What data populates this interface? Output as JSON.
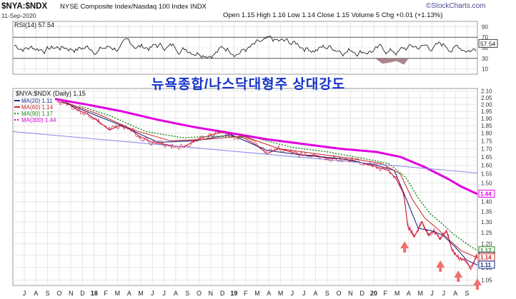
{
  "header": {
    "symbol": "$NYA:$NDX",
    "description": "NYSE Composite Index/Nasdaq 100 Index  INDX",
    "date": "11-Sep-2020",
    "quote": "Open 1.15  High 1.16  Low 1.14  Close 1.15  Volume 5  Chg +0.01 (+1.13%)",
    "brand": "©StockCharts.com",
    "chg_arrow": "▲"
  },
  "colors": {
    "ma20": "#1a2a8a",
    "ma60": "#cc2222",
    "ma90": "#238b23",
    "ma300": "#e000e0",
    "price": "#cc1a3a",
    "trend": "#8888ee",
    "arrow": "#f07070",
    "rsi": "#222222",
    "rsi_fill": "#a07a82",
    "annotation": "#1433c8"
  },
  "rsi": {
    "label": "RSI(14) 57.54",
    "last_value_tag": "57.54",
    "axis_labels": [
      "90",
      "70",
      "50",
      "30",
      "10"
    ],
    "overbought": 70,
    "oversold": 30
  },
  "annotation": {
    "text": "뉴욕종합/나스닥대형주 상대강도"
  },
  "legend": {
    "title": "$NYA:$NDX (Daily) 1.15",
    "items": [
      {
        "label": "MA(20) 1.11",
        "color": "#1a2a8a",
        "style": "solid"
      },
      {
        "label": "MA(60) 1.14",
        "color": "#cc2222",
        "style": "solid"
      },
      {
        "label": "MA(90) 1.17",
        "color": "#238b23",
        "style": "dotted"
      },
      {
        "label": "MA(300) 1.44",
        "color": "#e000e0",
        "style": "dotted"
      }
    ]
  },
  "price_tags": [
    "1.44",
    "1.17",
    "1.15",
    "1.14",
    "1.11"
  ],
  "chart_data": {
    "type": "line",
    "title": "$NYA:$NDX (Daily) 1.15",
    "xlabel": "",
    "ylabel": "",
    "log_scale": true,
    "grid": true,
    "legend_position": "top-left",
    "ylim": [
      1.03,
      2.12
    ],
    "y_ticks": [
      2.1,
      2.05,
      2.0,
      1.95,
      1.9,
      1.85,
      1.8,
      1.75,
      1.7,
      1.65,
      1.6,
      1.55,
      1.5,
      1.45,
      1.4,
      1.35,
      1.3,
      1.25,
      1.2,
      1.15,
      1.1,
      1.05
    ],
    "x_ticks": [
      "J",
      "A",
      "S",
      "O",
      "N",
      "D",
      "18",
      "F",
      "M",
      "A",
      "M",
      "J",
      "J",
      "A",
      "S",
      "O",
      "N",
      "D",
      "19",
      "F",
      "M",
      "A",
      "M",
      "J",
      "J",
      "A",
      "S",
      "O",
      "N",
      "D",
      "20",
      "F",
      "M",
      "A",
      "M",
      "J",
      "J",
      "A",
      "S"
    ],
    "xlim": [
      "2017-07-01",
      "2020-09-11"
    ],
    "series": [
      {
        "name": "$NYA:$NDX",
        "x": [
          "2017-10-20",
          "2017-11-15",
          "2017-12-10",
          "2018-01-05",
          "2018-02-01",
          "2018-03-01",
          "2018-03-25",
          "2018-04-20",
          "2018-05-15",
          "2018-06-15",
          "2018-07-10",
          "2018-08-05",
          "2018-09-01",
          "2018-09-25",
          "2018-10-20",
          "2018-11-15",
          "2018-12-10",
          "2019-01-05",
          "2019-02-01",
          "2019-03-01",
          "2019-04-01",
          "2019-05-01",
          "2019-06-01",
          "2019-07-01",
          "2019-08-01",
          "2019-09-01",
          "2019-10-01",
          "2019-11-01",
          "2019-12-01",
          "2020-01-01",
          "2020-02-01",
          "2020-02-20",
          "2020-03-10",
          "2020-03-20",
          "2020-04-05",
          "2020-04-25",
          "2020-05-10",
          "2020-05-25",
          "2020-06-10",
          "2020-06-25",
          "2020-07-10",
          "2020-07-25",
          "2020-08-10",
          "2020-08-25",
          "2020-09-11"
        ],
        "values": [
          2.02,
          2.01,
          1.96,
          1.93,
          1.88,
          1.82,
          1.85,
          1.83,
          1.78,
          1.74,
          1.73,
          1.72,
          1.71,
          1.74,
          1.77,
          1.79,
          1.81,
          1.78,
          1.77,
          1.73,
          1.67,
          1.7,
          1.68,
          1.66,
          1.66,
          1.64,
          1.64,
          1.63,
          1.61,
          1.59,
          1.57,
          1.52,
          1.44,
          1.28,
          1.23,
          1.3,
          1.24,
          1.26,
          1.22,
          1.26,
          1.17,
          1.14,
          1.13,
          1.1,
          1.15
        ]
      },
      {
        "name": "MA(20)",
        "x": [
          "2017-11-01",
          "2018-01-01",
          "2018-04-01",
          "2018-07-01",
          "2018-10-01",
          "2019-01-01",
          "2019-04-01",
          "2019-07-01",
          "2019-10-01",
          "2020-01-01",
          "2020-02-15",
          "2020-03-15",
          "2020-04-15",
          "2020-05-15",
          "2020-06-15",
          "2020-07-15",
          "2020-08-15",
          "2020-09-11"
        ],
        "values": [
          2.02,
          1.95,
          1.85,
          1.74,
          1.75,
          1.79,
          1.69,
          1.66,
          1.64,
          1.6,
          1.57,
          1.42,
          1.27,
          1.26,
          1.24,
          1.19,
          1.13,
          1.11
        ]
      },
      {
        "name": "MA(60)",
        "x": [
          "2017-11-15",
          "2018-02-01",
          "2018-05-01",
          "2018-08-01",
          "2018-11-01",
          "2019-02-01",
          "2019-05-01",
          "2019-08-01",
          "2019-11-01",
          "2020-01-15",
          "2020-03-01",
          "2020-04-01",
          "2020-05-01",
          "2020-06-01",
          "2020-07-01",
          "2020-08-01",
          "2020-09-11"
        ],
        "values": [
          2.01,
          1.93,
          1.82,
          1.75,
          1.76,
          1.78,
          1.7,
          1.67,
          1.64,
          1.61,
          1.55,
          1.41,
          1.32,
          1.27,
          1.22,
          1.17,
          1.14
        ]
      },
      {
        "name": "MA(90)",
        "x": [
          "2017-12-15",
          "2018-03-01",
          "2018-06-01",
          "2018-09-01",
          "2018-12-01",
          "2019-03-01",
          "2019-06-01",
          "2019-09-01",
          "2019-12-01",
          "2020-02-01",
          "2020-03-15",
          "2020-04-15",
          "2020-05-15",
          "2020-06-15",
          "2020-07-15",
          "2020-08-15",
          "2020-09-11"
        ],
        "values": [
          1.99,
          1.92,
          1.81,
          1.77,
          1.78,
          1.77,
          1.71,
          1.68,
          1.64,
          1.61,
          1.53,
          1.42,
          1.34,
          1.29,
          1.24,
          1.2,
          1.17
        ]
      },
      {
        "name": "MA(300)",
        "x": [
          "2017-10-15",
          "2018-01-01",
          "2018-04-01",
          "2018-07-01",
          "2018-10-01",
          "2019-01-01",
          "2019-04-01",
          "2019-07-01",
          "2019-10-01",
          "2020-01-01",
          "2020-03-01",
          "2020-05-01",
          "2020-07-01",
          "2020-08-01",
          "2020-09-11"
        ],
        "values": [
          2.04,
          2.0,
          1.95,
          1.89,
          1.84,
          1.8,
          1.76,
          1.73,
          1.7,
          1.68,
          1.65,
          1.59,
          1.52,
          1.48,
          1.44
        ]
      },
      {
        "name": "trend",
        "x": [
          "2017-07-01",
          "2020-09-11"
        ],
        "values": [
          1.81,
          1.555
        ]
      }
    ],
    "markers": [
      {
        "x": "2020-03-12",
        "y": 1.18
      },
      {
        "x": "2020-06-10",
        "y": 1.1
      },
      {
        "x": "2020-07-25",
        "y": 1.06
      },
      {
        "x": "2020-09-11",
        "y": 1.03
      }
    ],
    "rsi_series": {
      "name": "RSI(14)",
      "last": 57.54,
      "ylim": [
        0,
        100
      ],
      "y_ticks": [
        90,
        70,
        50,
        30,
        10
      ]
    }
  }
}
